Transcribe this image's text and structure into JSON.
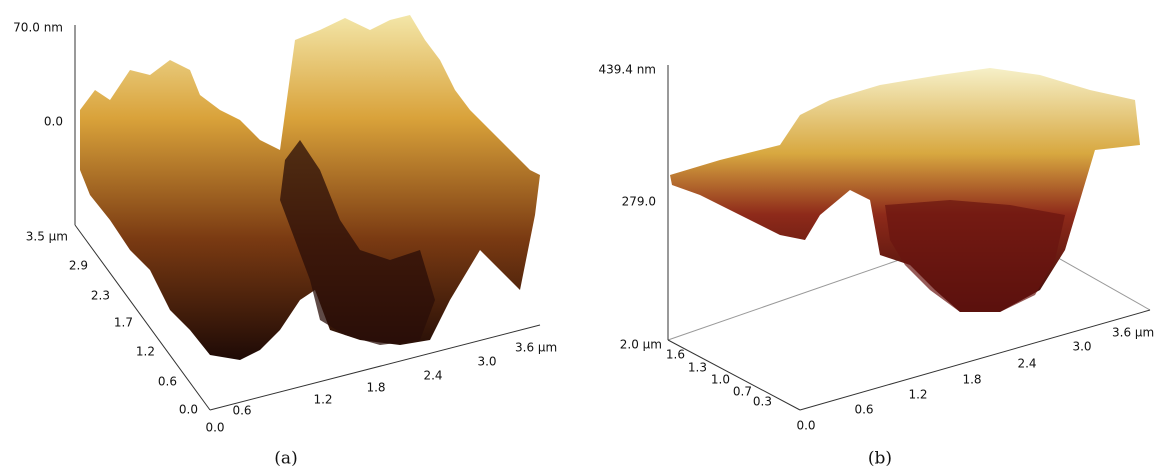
{
  "panels": [
    {
      "caption": "(a)",
      "z_ticks": [
        "70.0 nm",
        "0.0"
      ],
      "y_ticks": [
        "3.5 µm",
        "2.9",
        "2.3",
        "1.7",
        "1.2",
        "0.6",
        "0.0"
      ],
      "x_ticks": [
        "0.0",
        "0.6",
        "1.2",
        "1.8",
        "2.4",
        "3.0",
        "3.6 µm"
      ]
    },
    {
      "caption": "(b)",
      "z_ticks": [
        "439.4 nm",
        "279.0"
      ],
      "y_ticks": [
        "2.0 µm",
        "1.6",
        "1.3",
        "1.0",
        "0.7",
        "0.3"
      ],
      "x_ticks": [
        "0.0",
        "0.6",
        "1.2",
        "1.8",
        "2.4",
        "3.0",
        "3.6 µm"
      ]
    }
  ]
}
